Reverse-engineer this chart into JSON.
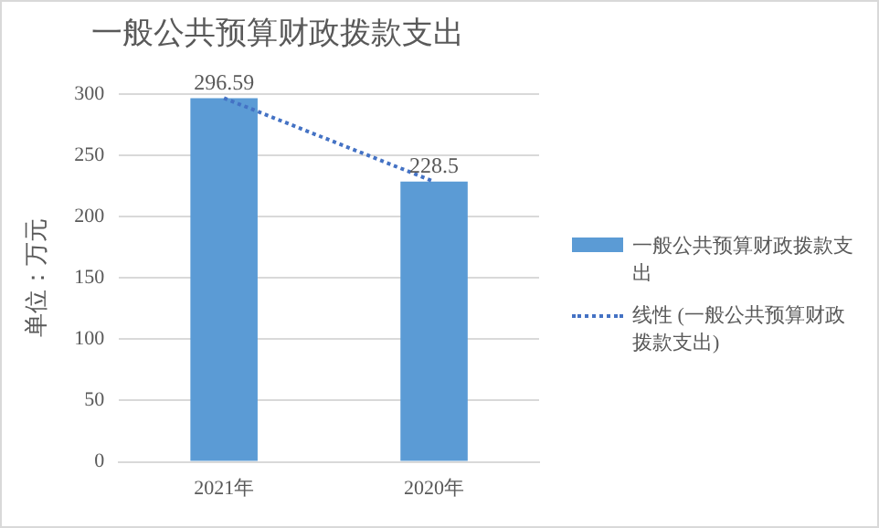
{
  "chart_data": {
    "type": "bar",
    "title": "一般公共预算财政拨款支出",
    "ylabel": "单位：万元",
    "categories": [
      "2021年",
      "2020年"
    ],
    "series": [
      {
        "name": "一般公共预算财政拨款支出",
        "color": "#5b9bd5",
        "values": [
          296.59,
          228.5
        ],
        "value_labels": [
          "296.59",
          "228.5"
        ]
      },
      {
        "name": "线性 (一般公共预算财政拨款支出)",
        "type": "line",
        "color": "#4472c4",
        "values": [
          296.59,
          228.5
        ],
        "line_style": "dotted",
        "marker": "none"
      }
    ],
    "ylim": [
      0,
      300
    ],
    "yticks": [
      0,
      50,
      100,
      150,
      200,
      250,
      300
    ],
    "grid": "y",
    "legend": "right"
  }
}
